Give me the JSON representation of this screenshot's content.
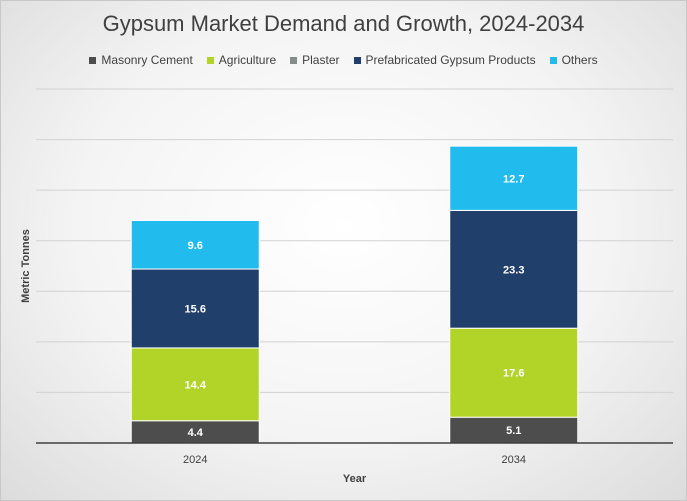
{
  "chart_data": {
    "type": "bar",
    "stacked": true,
    "title": "Gypsum Market Demand and Growth, 2024-2034",
    "xlabel": "Year",
    "ylabel": "Metric Tonnes",
    "categories": [
      "2024",
      "2034"
    ],
    "series": [
      {
        "name": "Masonry Cement",
        "color": "#4d4d4d",
        "values": [
          4.4,
          5.1
        ]
      },
      {
        "name": "Agriculture",
        "color": "#b2d428",
        "values": [
          14.4,
          17.6
        ]
      },
      {
        "name": "Plaster",
        "color": "#868b8c",
        "values": [
          0,
          0
        ]
      },
      {
        "name": "Prefabricated Gypsum Products",
        "color": "#213f6b",
        "values": [
          15.6,
          23.3
        ]
      },
      {
        "name": "Others",
        "color": "#22bbed",
        "values": [
          9.6,
          12.7
        ]
      }
    ],
    "ylim": [
      0,
      70
    ],
    "grid": true,
    "legend_position": "top",
    "data_labels": true
  }
}
